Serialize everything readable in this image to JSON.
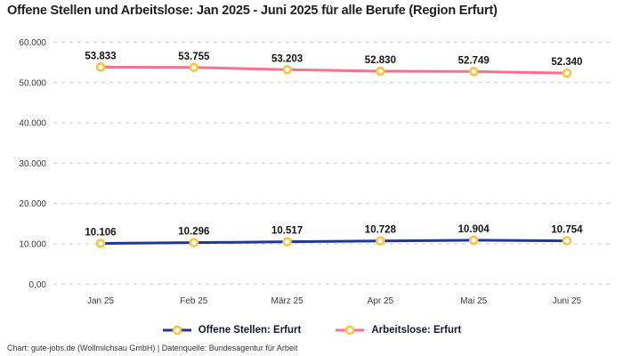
{
  "title": "Offene Stellen und Arbeitslose: Jan 2025 - Juni 2025 für alle Berufe (Region Erfurt)",
  "footer": "Chart: gute-jobs.de (Wollmilchsau GmbH) | Datenquelle: Bundesagentur für Arbeit",
  "colors": {
    "open_positions_line": "#1e3799",
    "unemployed_line": "#f8708f",
    "marker_stroke": "#fcc33c",
    "marker_fill": "#ffffff",
    "grid": "#cccccc",
    "axis_text": "#3a3a3a",
    "data_label_text": "#141414"
  },
  "chart_data": {
    "type": "line",
    "categories": [
      "Jan 25",
      "Feb 25",
      "März 25",
      "Apr 25",
      "Mai 25",
      "Juni 25"
    ],
    "series": [
      {
        "name": "Offene Stellen: Erfurt",
        "color_key": "open_positions_line",
        "values": [
          10106,
          10296,
          10517,
          10728,
          10904,
          10754
        ],
        "value_labels": [
          "10.106",
          "10.296",
          "10.517",
          "10.728",
          "10.904",
          "10.754"
        ]
      },
      {
        "name": "Arbeitslose: Erfurt",
        "color_key": "unemployed_line",
        "values": [
          53833,
          53755,
          53203,
          52830,
          52749,
          52340
        ],
        "value_labels": [
          "53.833",
          "53.755",
          "53.203",
          "52.830",
          "52.749",
          "52.340"
        ]
      }
    ],
    "y_axis": {
      "min": 0,
      "max": 60000,
      "ticks": [
        {
          "value": 60000,
          "label": "60.000"
        },
        {
          "value": 50000,
          "label": "50.000"
        },
        {
          "value": 40000,
          "label": "40.000"
        },
        {
          "value": 30000,
          "label": "30.000"
        },
        {
          "value": 20000,
          "label": "20.000"
        },
        {
          "value": 10000,
          "label": "10.000"
        },
        {
          "value": 0,
          "label": "0,00"
        }
      ]
    },
    "grid": {
      "style": "dashed-horizontal",
      "vertical": false
    },
    "legend_position": "bottom",
    "markers": "yellow-ring"
  }
}
